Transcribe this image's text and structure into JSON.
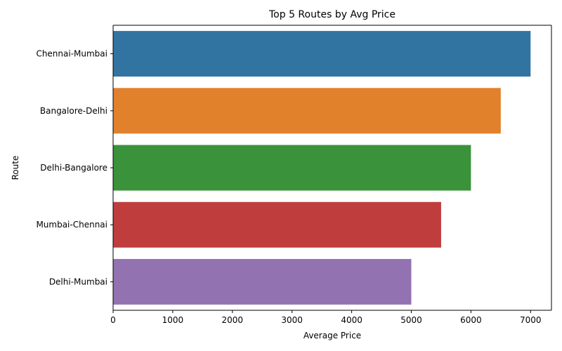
{
  "chart_data": {
    "type": "bar",
    "orientation": "horizontal",
    "title": "Top 5 Routes by Avg Price",
    "xlabel": "Average Price",
    "ylabel": "Route",
    "categories": [
      "Chennai-Mumbai",
      "Bangalore-Delhi",
      "Delhi-Bangalore",
      "Mumbai-Chennai",
      "Delhi-Mumbai"
    ],
    "values": [
      7000,
      6500,
      6000,
      5500,
      5000
    ],
    "colors": [
      "#3274a1",
      "#e1812c",
      "#3a923a",
      "#c03d3e",
      "#9372b2"
    ],
    "xlim": [
      0,
      7350
    ],
    "xticks": [
      0,
      1000,
      2000,
      3000,
      4000,
      5000,
      6000,
      7000
    ],
    "grid": false,
    "legend": "none"
  }
}
